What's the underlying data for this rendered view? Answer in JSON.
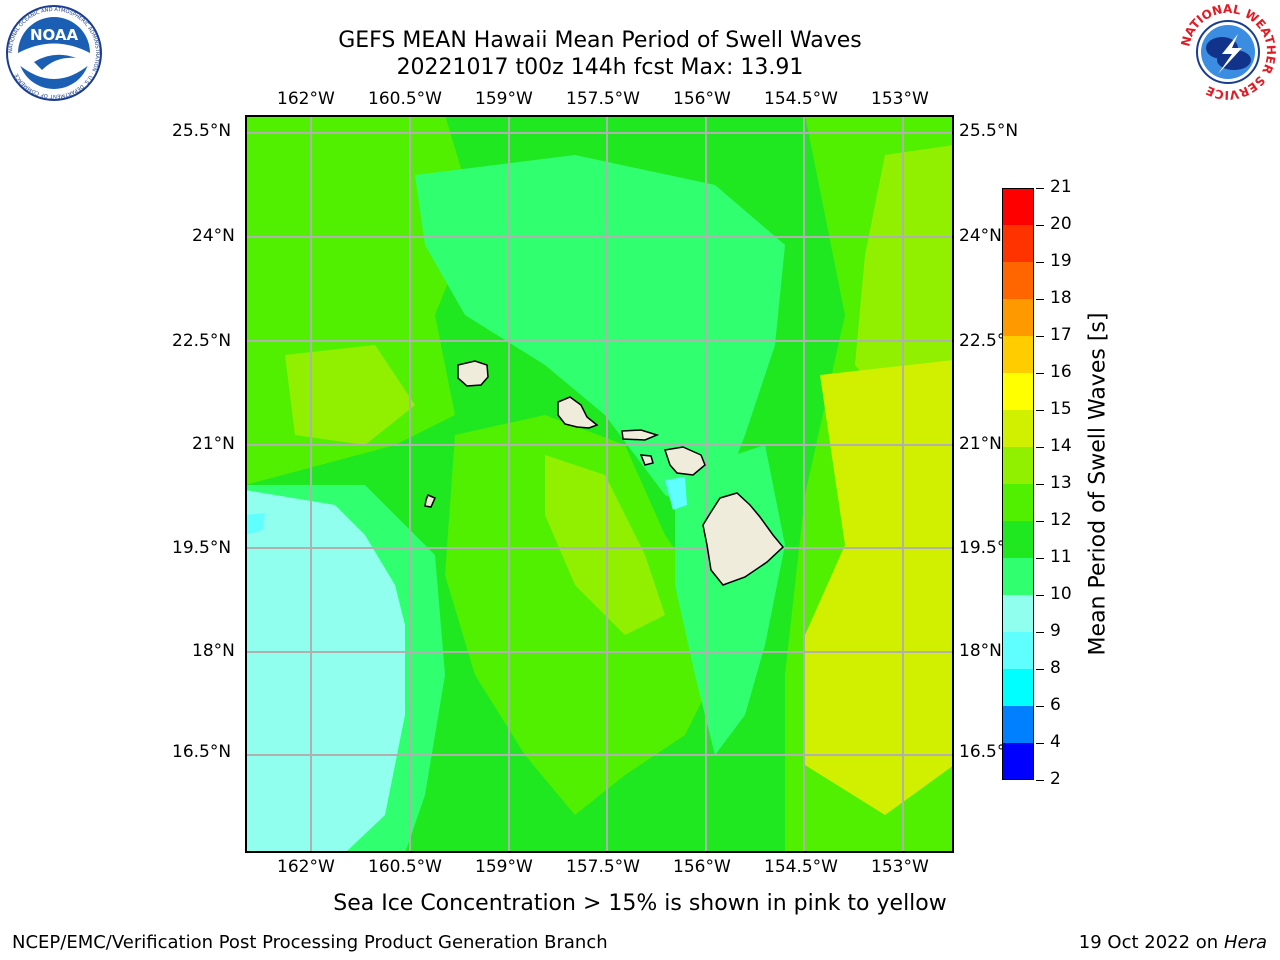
{
  "header": {
    "title_line1": "GEFS MEAN Hawaii Mean Period of Swell Waves",
    "title_line2": "20221017 t00z 144h fcst   Max: 13.91"
  },
  "logos": {
    "left": "NOAA",
    "left_ring_text": "NATIONAL OCEANIC AND ATMOSPHERIC ADMINISTRATION · U.S. DEPARTMENT OF COMMERCE",
    "right_ring_text": "NATIONAL WEATHER SERVICE"
  },
  "map": {
    "lon_ticks": [
      "162°W",
      "160.5°W",
      "159°W",
      "157.5°W",
      "156°W",
      "154.5°W",
      "153°W"
    ],
    "lat_ticks": [
      "25.5°N",
      "24°N",
      "22.5°N",
      "21°N",
      "19.5°N",
      "18°N",
      "16.5°N"
    ],
    "gridlines": true,
    "land_color": "#efecdc",
    "field": "Mean Period of Swell Waves"
  },
  "colorbar": {
    "label": "Mean Period of Swell Waves [s]",
    "levels": [
      "2",
      "4",
      "6",
      "8",
      "9",
      "10",
      "11",
      "12",
      "13",
      "14",
      "15",
      "16",
      "17",
      "18",
      "19",
      "20",
      "21"
    ],
    "colors": [
      "#0000ff",
      "#0080ff",
      "#00ffff",
      "#60ffff",
      "#90ffee",
      "#30ff70",
      "#20e820",
      "#50f000",
      "#90f000",
      "#d0f000",
      "#ffff00",
      "#ffcc00",
      "#ff9900",
      "#ff6600",
      "#ff3300",
      "#ff0000"
    ]
  },
  "footer": {
    "note": "Sea Ice Concentration > 15% is shown in pink to yellow",
    "left": "NCEP/EMC/Verification Post Processing Product Generation Branch",
    "date": "19 Oct 2022 on ",
    "host": "Hera"
  }
}
